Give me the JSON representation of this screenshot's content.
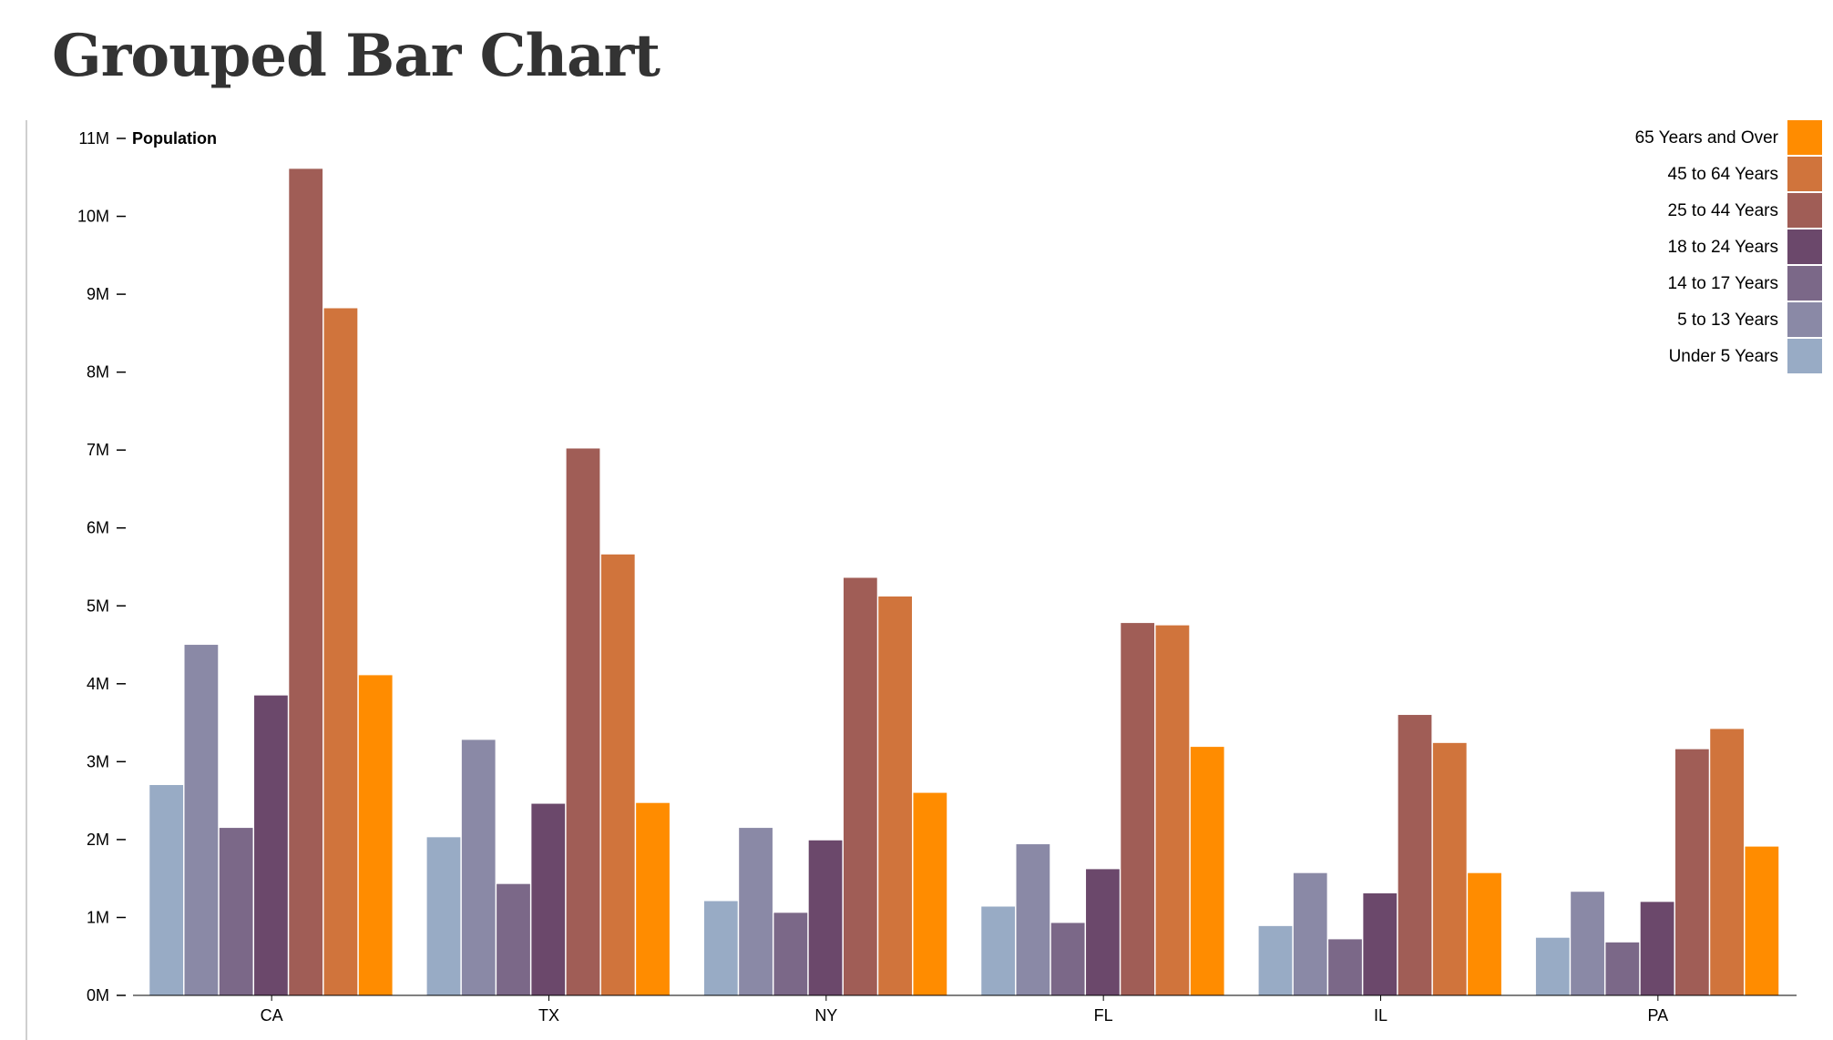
{
  "page": {
    "title": "Grouped Bar Chart"
  },
  "chart_data": {
    "type": "bar",
    "title": "",
    "ylabel": "Population",
    "xlabel": "",
    "ylim": [
      0,
      11000000
    ],
    "yticks": [
      0,
      1000000,
      2000000,
      3000000,
      4000000,
      5000000,
      6000000,
      7000000,
      8000000,
      9000000,
      10000000,
      11000000
    ],
    "ytick_labels": [
      "0M",
      "1M",
      "2M",
      "3M",
      "4M",
      "5M",
      "6M",
      "7M",
      "8M",
      "9M",
      "10M",
      "11M"
    ],
    "categories": [
      "CA",
      "TX",
      "NY",
      "FL",
      "IL",
      "PA"
    ],
    "series": [
      {
        "name": "Under 5 Years",
        "color": "#98abc5",
        "values": [
          2700000,
          2030000,
          1210000,
          1140000,
          890000,
          740000
        ]
      },
      {
        "name": "5 to 13 Years",
        "color": "#8a89a6",
        "values": [
          4500000,
          3280000,
          2150000,
          1940000,
          1570000,
          1330000
        ]
      },
      {
        "name": "14 to 17 Years",
        "color": "#7b6888",
        "values": [
          2150000,
          1430000,
          1060000,
          930000,
          720000,
          680000
        ]
      },
      {
        "name": "18 to 24 Years",
        "color": "#6b486b",
        "values": [
          3850000,
          2460000,
          1990000,
          1620000,
          1310000,
          1200000
        ]
      },
      {
        "name": "25 to 44 Years",
        "color": "#a05d56",
        "values": [
          10610000,
          7020000,
          5360000,
          4780000,
          3600000,
          3160000
        ]
      },
      {
        "name": "45 to 64 Years",
        "color": "#d0743c",
        "values": [
          8820000,
          5660000,
          5120000,
          4750000,
          3240000,
          3420000
        ]
      },
      {
        "name": "65 Years and Over",
        "color": "#ff8c00",
        "values": [
          4110000,
          2470000,
          2600000,
          3190000,
          1570000,
          1910000
        ]
      }
    ],
    "legend": {
      "position": "top-right",
      "order": [
        "65 Years and Over",
        "45 to 64 Years",
        "25 to 44 Years",
        "18 to 24 Years",
        "14 to 17 Years",
        "5 to 13 Years",
        "Under 5 Years"
      ]
    },
    "grid": false
  }
}
